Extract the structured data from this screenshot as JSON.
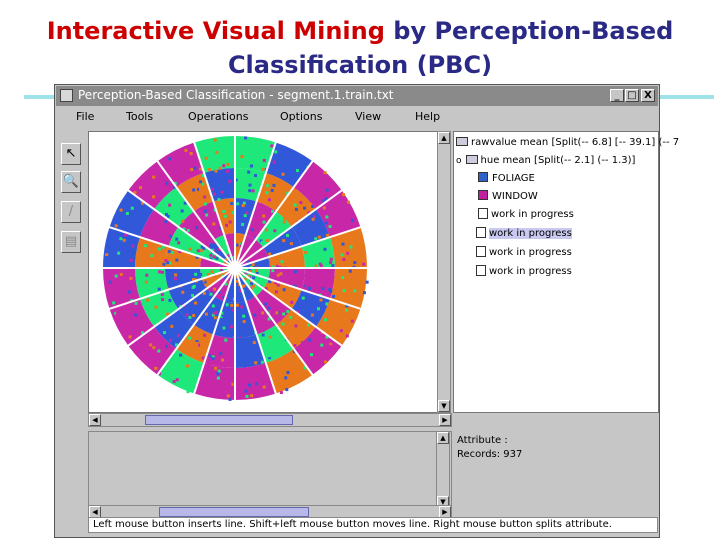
{
  "slide": {
    "title_part1": "Interactive Visual Mining",
    "title_part2": "by Perception-Based",
    "title_line2": "Classification (PBC)"
  },
  "window": {
    "title": "Perception-Based Classification - segment.1.train.txt",
    "controls": [
      "_",
      "□",
      "X"
    ]
  },
  "menu": [
    "File",
    "Tools",
    "Operations",
    "Options",
    "View",
    "Help"
  ],
  "toolbar": [
    {
      "icon": "pointer-icon",
      "glyph": "↖"
    },
    {
      "icon": "zoom-icon",
      "glyph": "🔍"
    },
    {
      "icon": "split-tool-icon",
      "glyph": "/"
    },
    {
      "icon": "grid-tool-icon",
      "glyph": "▤"
    }
  ],
  "tree": {
    "items": [
      {
        "label": "rawvalue mean [Split(-- 6.8] [-- 39.1] (-- 7",
        "type": "folder",
        "indent": 0
      },
      {
        "label": "hue mean [Split(-- 2.1] (-- 1.3)]",
        "type": "folder-open",
        "indent": 1
      },
      {
        "label": "FOLIAGE",
        "type": "class",
        "color": "#3060c8",
        "indent": 2
      },
      {
        "label": "WINDOW",
        "type": "class",
        "color": "#c020a0",
        "indent": 2
      },
      {
        "label": "work in progress",
        "type": "file",
        "indent": 2
      },
      {
        "label": "work in progress",
        "type": "file",
        "indent": 1,
        "selected": true
      },
      {
        "label": "work in progress",
        "type": "file",
        "indent": 1
      },
      {
        "label": "work in progress",
        "type": "file",
        "indent": 1
      }
    ]
  },
  "info": {
    "attribute": "Attribute :",
    "records": "Records:  937"
  },
  "status": "Left mouse button inserts line. Shift+left mouse button moves line. Right mouse button splits attribute.",
  "colors": {
    "orange": "#e8781c",
    "green": "#1ee87a",
    "blue": "#3058d8",
    "magenta": "#c828a8",
    "window_gray": "#c6c6c6",
    "titlebar": "#8a8a8a"
  }
}
